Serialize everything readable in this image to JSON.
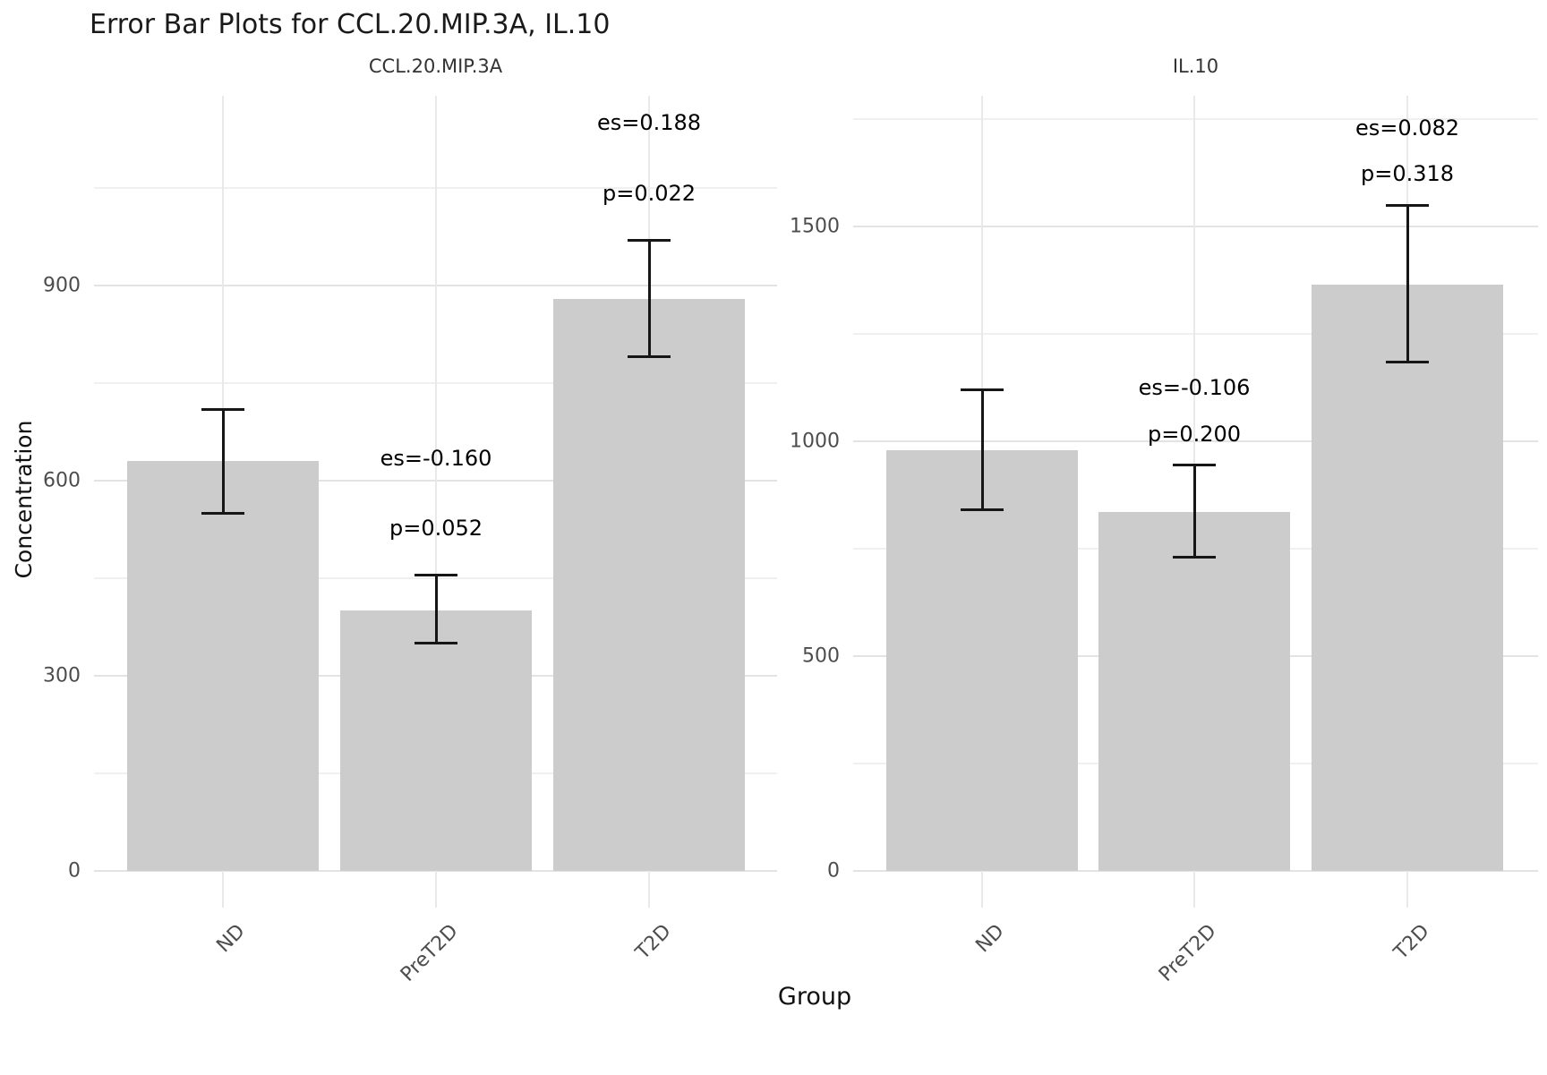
{
  "figure": {
    "title": "Error Bar Plots for CCL.20.MIP.3A, IL.10",
    "x_axis_label": "Group",
    "y_axis_label": "Concentration"
  },
  "chart_data": [
    {
      "type": "bar",
      "title": "CCL.20.MIP.3A",
      "xlabel": "Group",
      "ylabel": "Concentration",
      "categories": [
        "ND",
        "PreT2D",
        "T2D"
      ],
      "values": [
        630,
        400,
        880
      ],
      "error_low": [
        550,
        350,
        790
      ],
      "error_high": [
        710,
        455,
        970
      ],
      "annotations": [
        null,
        {
          "es_label": "es=-0.160",
          "p_label": "p=0.052"
        },
        {
          "es_label": "es=0.188",
          "p_label": "p=0.022"
        }
      ],
      "yticks": [
        0,
        300,
        600,
        900
      ],
      "yticks_minor": [
        150,
        450,
        750,
        1050
      ],
      "ylim": [
        -60,
        1190
      ],
      "grid": "on",
      "legend": "none",
      "bar_color": "#cccccc",
      "error_color": "#161616"
    },
    {
      "type": "bar",
      "title": "IL.10",
      "xlabel": "Group",
      "ylabel": "Concentration",
      "categories": [
        "ND",
        "PreT2D",
        "T2D"
      ],
      "values": [
        980,
        835,
        1365
      ],
      "error_low": [
        840,
        730,
        1185
      ],
      "error_high": [
        1120,
        945,
        1550
      ],
      "annotations": [
        null,
        {
          "es_label": "es=-0.106",
          "p_label": "p=0.200"
        },
        {
          "es_label": "es=0.082",
          "p_label": "p=0.318"
        }
      ],
      "yticks": [
        0,
        500,
        1000,
        1500
      ],
      "yticks_minor": [
        250,
        750,
        1250,
        1750
      ],
      "ylim": [
        -90,
        1800
      ],
      "grid": "on",
      "legend": "none",
      "bar_color": "#cccccc",
      "error_color": "#161616"
    }
  ]
}
